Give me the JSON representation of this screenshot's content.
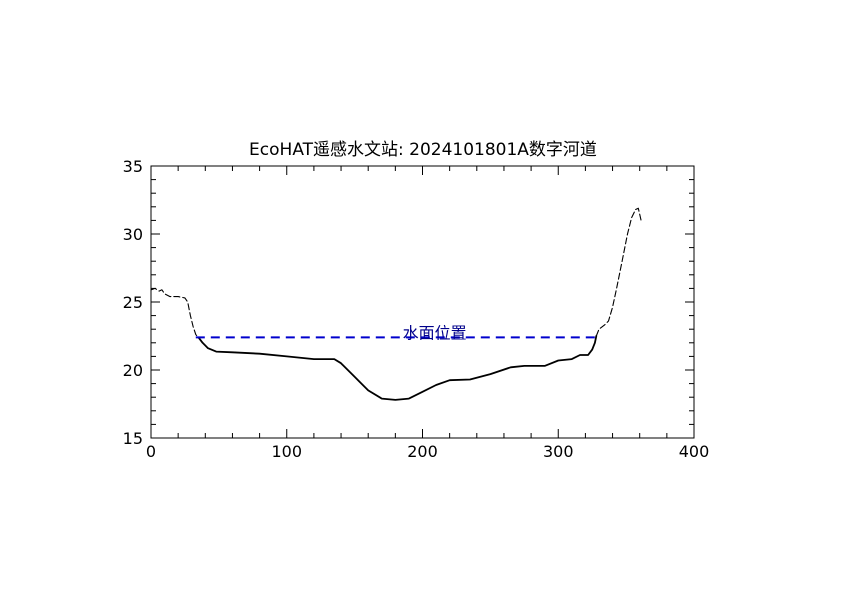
{
  "chart_data": {
    "type": "line",
    "title": "EcoHAT遥感水文站: 2024101801A数字河道",
    "xlabel": "",
    "ylabel": "",
    "xlim": [
      0,
      400
    ],
    "ylim": [
      15,
      35
    ],
    "x_ticks": [
      "0",
      "100",
      "200",
      "300",
      "400"
    ],
    "y_ticks": [
      "15",
      "20",
      "25",
      "30",
      "35"
    ],
    "grid": false,
    "series": [
      {
        "style": "dashed",
        "color": "#000000",
        "points": [
          [
            0,
            25.9
          ],
          [
            3,
            26.0
          ],
          [
            6,
            25.8
          ],
          [
            8,
            25.9
          ],
          [
            10,
            25.6
          ],
          [
            14,
            25.4
          ],
          [
            20,
            25.4
          ],
          [
            25,
            25.3
          ],
          [
            27,
            25.0
          ],
          [
            29,
            24.0
          ],
          [
            31,
            23.2
          ],
          [
            33,
            22.6
          ],
          [
            35,
            22.4
          ]
        ]
      },
      {
        "style": "solid",
        "color": "#000000",
        "points": [
          [
            35,
            22.4
          ],
          [
            38,
            22.0
          ],
          [
            42,
            21.6
          ],
          [
            48,
            21.35
          ],
          [
            60,
            21.3
          ],
          [
            80,
            21.2
          ],
          [
            100,
            21.0
          ],
          [
            120,
            20.8
          ],
          [
            135,
            20.8
          ],
          [
            140,
            20.5
          ],
          [
            150,
            19.5
          ],
          [
            160,
            18.5
          ],
          [
            170,
            17.9
          ],
          [
            180,
            17.8
          ],
          [
            190,
            17.9
          ],
          [
            200,
            18.4
          ],
          [
            210,
            18.9
          ],
          [
            220,
            19.25
          ],
          [
            235,
            19.3
          ],
          [
            250,
            19.7
          ],
          [
            265,
            20.2
          ],
          [
            275,
            20.3
          ],
          [
            290,
            20.3
          ],
          [
            300,
            20.7
          ],
          [
            310,
            20.8
          ],
          [
            316,
            21.1
          ],
          [
            322,
            21.1
          ],
          [
            325,
            21.5
          ],
          [
            327,
            22.0
          ],
          [
            328,
            22.5
          ]
        ]
      },
      {
        "style": "dashed",
        "color": "#000000",
        "points": [
          [
            328,
            22.5
          ],
          [
            330,
            23.0
          ],
          [
            334,
            23.3
          ],
          [
            337,
            23.6
          ],
          [
            340,
            24.6
          ],
          [
            343,
            26.0
          ],
          [
            347,
            28.0
          ],
          [
            351,
            30.0
          ],
          [
            354,
            31.2
          ],
          [
            357,
            31.8
          ],
          [
            359,
            31.9
          ],
          [
            361,
            31.0
          ]
        ]
      }
    ],
    "water_level": {
      "value": 22.4,
      "x_range": [
        33,
        328
      ],
      "color": "#0000cd",
      "label": "水面位置",
      "label_x": 206
    }
  }
}
